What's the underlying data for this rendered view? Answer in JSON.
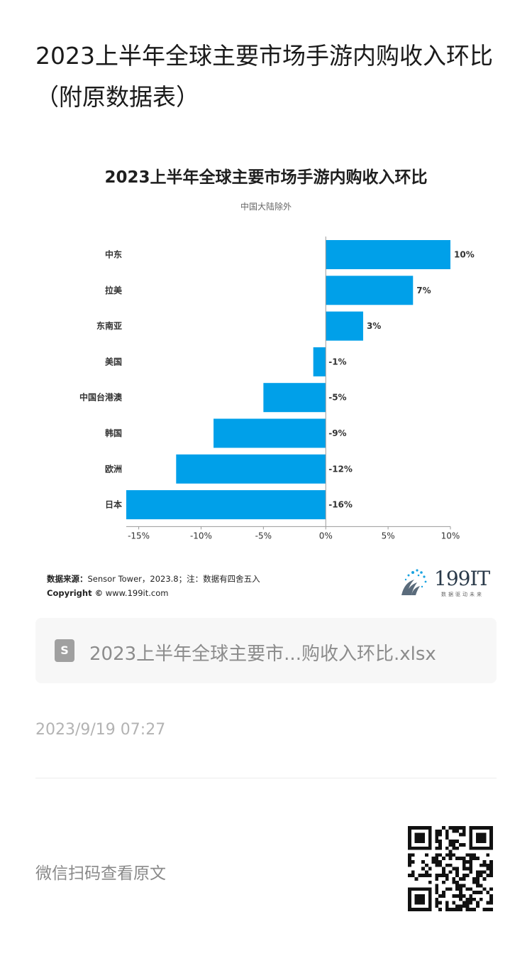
{
  "article": {
    "title": "2023上半年全球主要市场手游内购收入环比（附原数据表）",
    "attachment_name": "2023上半年全球主要市...购收入环比.xlsx",
    "timestamp": "2023/9/19 07:27",
    "scan_prompt": "微信扫码查看原文",
    "file_icon": "spreadsheet-icon"
  },
  "figure": {
    "source_label": "数据来源：",
    "source_text": "Sensor Tower，2023.8；注：数据有四舍五入",
    "copyright_label": "Copyright ©",
    "copyright_text": "www.199it.com",
    "logo_text": "199IT",
    "logo_slogan": "数据驱动未来"
  },
  "colors": {
    "bar": "#00a0e9",
    "axis": "#9a9a9a",
    "text": "#333333"
  },
  "chart_data": {
    "type": "bar",
    "orientation": "horizontal",
    "title": "2023上半年全球主要市场手游内购收入环比",
    "subtitle": "中国大陆除外",
    "categories": [
      "中东",
      "拉美",
      "东南亚",
      "美国",
      "中国台港澳",
      "韩国",
      "欧洲",
      "日本"
    ],
    "values": [
      10,
      7,
      3,
      -1,
      -5,
      -9,
      -12,
      -16
    ],
    "value_labels": [
      "10%",
      "7%",
      "3%",
      "-1%",
      "-5%",
      "-9%",
      "-12%",
      "-16%"
    ],
    "xlim": [
      -16,
      10
    ],
    "xticks": [
      -15,
      -10,
      -5,
      0,
      5,
      10
    ],
    "xtick_labels": [
      "-15%",
      "-10%",
      "-5%",
      "0%",
      "5%",
      "10%"
    ],
    "grid": false,
    "legend": "none"
  }
}
